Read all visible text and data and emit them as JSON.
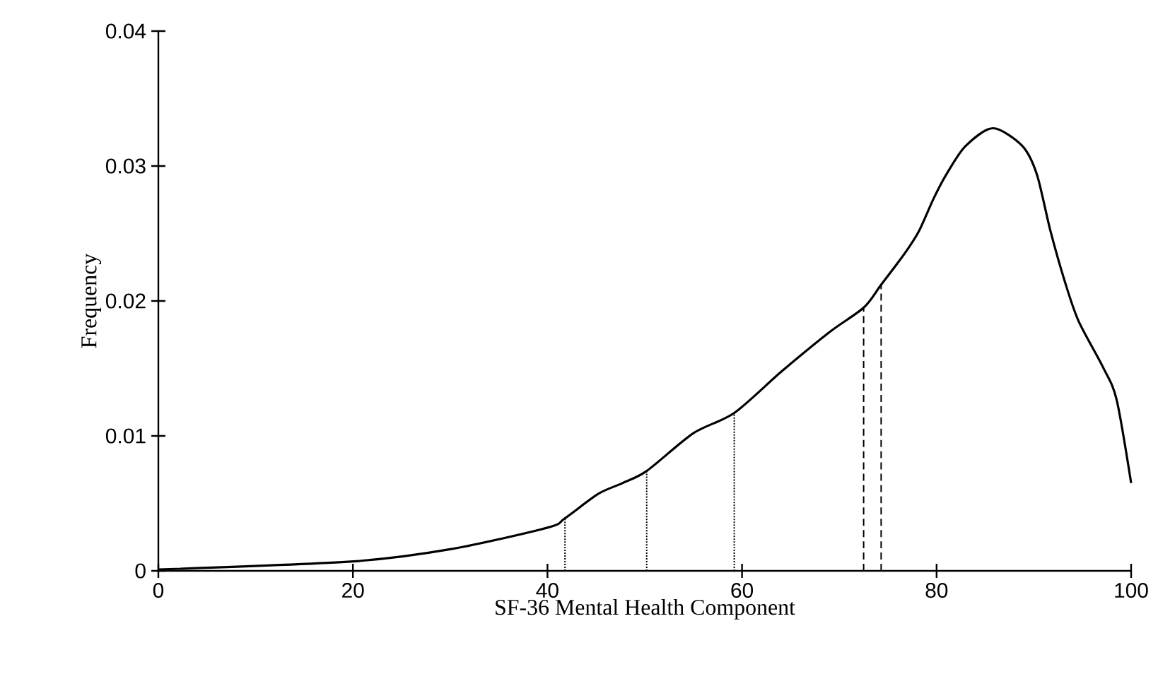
{
  "chart_data": {
    "type": "line",
    "xlabel": "SF-36 Mental Health Component",
    "ylabel": "Frequency",
    "x": [
      0,
      20,
      30,
      40,
      41.8,
      45.2,
      47.7,
      50.2,
      55,
      59.2,
      64.1,
      69,
      72.5,
      74.3,
      76.7,
      78.2,
      79.7,
      81.1,
      83,
      85.8,
      88.8,
      90.3,
      91.7,
      93.2,
      94.6,
      97.1,
      98.5,
      100
    ],
    "series": [
      {
        "color": "#000000",
        "values": [
          0.0001,
          0.0007,
          0.0016,
          0.0032,
          0.0039,
          0.0057,
          0.0065,
          0.0074,
          0.0102,
          0.0117,
          0.0148,
          0.0177,
          0.0195,
          0.0212,
          0.0235,
          0.0252,
          0.0276,
          0.0295,
          0.0315,
          0.0328,
          0.0315,
          0.0294,
          0.0252,
          0.0214,
          0.0185,
          0.0151,
          0.0127,
          0.0065
        ]
      }
    ],
    "xlim": [
      0,
      100
    ],
    "xticks": [
      0,
      20,
      40,
      60,
      80,
      100
    ],
    "ylim": [
      0,
      0.04
    ],
    "yticks": [
      {
        "value": 0,
        "label": "0"
      },
      {
        "value": 0.01,
        "label": "0.01"
      },
      {
        "value": 0.02,
        "label": "0.02"
      },
      {
        "value": 0.03,
        "label": "0.03"
      },
      {
        "value": 0.04,
        "label": "0.04"
      }
    ],
    "ref_lines": [
      {
        "axis": "x",
        "value": 41.8,
        "line_style": "dotted"
      },
      {
        "axis": "x",
        "value": 50.2,
        "line_style": "dotted"
      },
      {
        "axis": "x",
        "value": 59.2,
        "line_style": "dotted"
      },
      {
        "axis": "x",
        "value": 72.5,
        "line_style": "dashed"
      },
      {
        "axis": "x",
        "value": 74.3,
        "line_style": "dashed"
      }
    ],
    "marker": "none",
    "line_style": "solid"
  }
}
